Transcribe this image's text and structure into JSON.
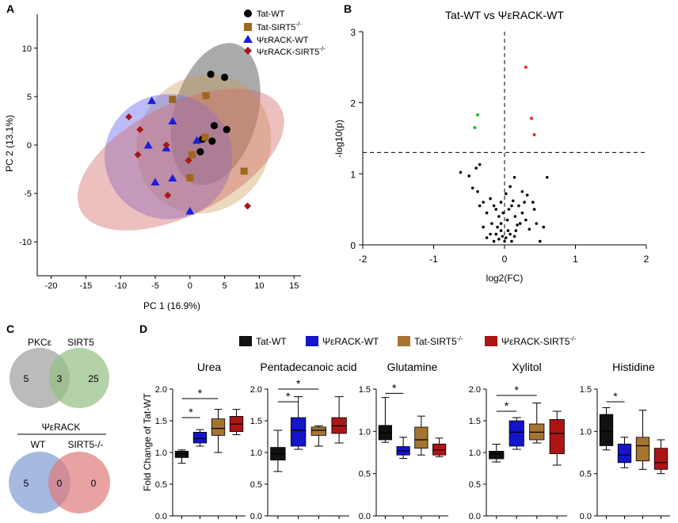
{
  "panels": {
    "a": "A",
    "b": "B",
    "c": "C",
    "d": "D"
  },
  "colors": {
    "tat_wt": "#000000",
    "tat_sirt5": "#a0661e",
    "psi_wt": "#1d1ddb",
    "psi_sirt5": "#a41919",
    "box_tat_wt": "#111111",
    "box_psi_wt": "#1414c8",
    "box_tat_sirt5": "#a47431",
    "box_psi_sirt5": "#ad1414",
    "venn_gray": "#9e9e9e",
    "venn_green": "#93bf82",
    "venn_blue": "#8fa8d9",
    "venn_red": "#e07a7a",
    "volcano_up": "#ee2a1e",
    "volcano_down": "#1fbf2a"
  },
  "pca": {
    "xlabel": "PC 1 (16.9%)",
    "ylabel": "PC 2 (13.1%)",
    "xticks": [
      "-20",
      "-15",
      "-10",
      "-5",
      "0",
      "5",
      "10",
      "15"
    ],
    "yticks": [
      "10",
      "5",
      "0",
      "-5",
      "-10"
    ],
    "legend": [
      "Tat-WT",
      "Tat-SIRT5",
      "ΨεRACK-WT",
      "ΨεRACK-SIRT5"
    ],
    "legend_sup": "-/-"
  },
  "volcano": {
    "title": "Tat-WT vs ΨεRACK-WT",
    "xlabel": "log2(FC)",
    "ylabel": "-log10(p)",
    "xticks": [
      "-2",
      "-1",
      "0",
      "1",
      "2"
    ],
    "yticks": [
      "3",
      "2",
      "1",
      "0"
    ]
  },
  "venn": {
    "top": {
      "left_label": "PKCε",
      "right_label": "SIRT5",
      "left_only": "5",
      "overlap": "3",
      "right_only": "25"
    },
    "bottom": {
      "title": "ΨεRACK",
      "left_label": "WT",
      "right_label": "SIRT5-/-",
      "left_only": "5",
      "overlap": "0",
      "right_only": "0"
    }
  },
  "boxplots": {
    "legend": [
      "Tat-WT",
      "ΨεRACK-WT",
      "Tat-SIRT5",
      "ΨεRACK-SIRT5"
    ],
    "legend_sup": "-/-",
    "ylabel": "Fold Change of Tat-WT",
    "sig": "*"
  },
  "chart_data": [
    {
      "type": "scatter",
      "title": "",
      "xlabel": "PC 1 (16.9%)",
      "ylabel": "PC 2 (13.1%)",
      "xlim": [
        -22,
        16
      ],
      "ylim": [
        -13.5,
        13.5
      ],
      "series": [
        {
          "name": "Tat-WT",
          "marker": "circle",
          "points": [
            [
              3,
              7.3
            ],
            [
              5,
              7
            ],
            [
              3.5,
              2
            ],
            [
              5.3,
              1.6
            ],
            [
              1.8,
              0.6
            ],
            [
              3.2,
              0.4
            ],
            [
              1.5,
              -0.7
            ]
          ]
        },
        {
          "name": "Tat-SIRT5-/-",
          "marker": "square",
          "points": [
            [
              -2.5,
              4.7
            ],
            [
              2.3,
              5.1
            ],
            [
              2.2,
              0.8
            ],
            [
              0.3,
              -1
            ],
            [
              0,
              -3.4
            ],
            [
              7.8,
              -2.7
            ]
          ]
        },
        {
          "name": "ΨεRACK-WT",
          "marker": "triangle",
          "points": [
            [
              -5.5,
              4.6
            ],
            [
              -2.5,
              2.5
            ],
            [
              -6,
              0
            ],
            [
              -3.4,
              -0.3
            ],
            [
              1,
              0.5
            ],
            [
              -2.5,
              -3.4
            ],
            [
              -5,
              -3.8
            ],
            [
              0,
              -6.8
            ]
          ]
        },
        {
          "name": "ΨεRACK-SIRT5-/-",
          "marker": "diamond",
          "points": [
            [
              -8.8,
              2.9
            ],
            [
              -7.2,
              1.6
            ],
            [
              -3.4,
              0
            ],
            [
              -7.5,
              -1
            ],
            [
              -0.2,
              -1.6
            ],
            [
              -3.2,
              -5.2
            ],
            [
              8.3,
              -6.3
            ]
          ]
        }
      ],
      "ellipses": [
        {
          "series": "Tat-WT",
          "center": [
            3.7,
            3.2
          ],
          "rx": 10.5,
          "ry": 4.3,
          "angle": -74
        },
        {
          "series": "Tat-SIRT5-/-",
          "center": [
            2,
            0.1
          ],
          "rx": 10.2,
          "ry": 6.8,
          "angle": -58
        },
        {
          "series": "ΨεRACK-WT",
          "center": [
            -3.1,
            -1.2
          ],
          "rx": 9,
          "ry": 6.6,
          "angle": -92
        },
        {
          "series": "ΨεRACK-SIRT5-/-",
          "center": [
            -1.3,
            -1.5
          ],
          "rx": 16.2,
          "ry": 5.7,
          "angle": -27
        }
      ]
    },
    {
      "type": "scatter",
      "title": "Tat-WT vs ΨεRACK-WT",
      "xlabel": "log2(FC)",
      "ylabel": "-log10(p)",
      "xlim": [
        -2,
        2
      ],
      "ylim": [
        0,
        3
      ],
      "threshold_y": 1.3,
      "significant_up": [
        [
          0.3,
          2.5
        ],
        [
          0.38,
          1.78
        ],
        [
          0.42,
          1.55
        ]
      ],
      "significant_down": [
        [
          -0.38,
          1.83
        ],
        [
          -0.42,
          1.65
        ]
      ],
      "nonsignificant": [
        [
          -0.62,
          1.02
        ],
        [
          -0.5,
          0.97
        ],
        [
          -0.4,
          1.08
        ],
        [
          -0.35,
          1.13
        ],
        [
          -0.38,
          0.75
        ],
        [
          -0.3,
          0.6
        ],
        [
          -0.2,
          0.65
        ],
        [
          -0.35,
          0.55
        ],
        [
          -0.25,
          0.45
        ],
        [
          -0.15,
          0.55
        ],
        [
          -0.12,
          0.5
        ],
        [
          -0.08,
          0.4
        ],
        [
          -0.05,
          0.3
        ],
        [
          -0.02,
          0.45
        ],
        [
          -0.18,
          0.3
        ],
        [
          -0.1,
          0.25
        ],
        [
          -0.05,
          0.2
        ],
        [
          -0.03,
          0.12
        ],
        [
          -0.08,
          0.08
        ],
        [
          -0.12,
          0.15
        ],
        [
          0,
          0.05
        ],
        [
          0.02,
          0.1
        ],
        [
          0.05,
          0.2
        ],
        [
          0.08,
          0.15
        ],
        [
          0.1,
          0.05
        ],
        [
          0.04,
          0.35
        ],
        [
          0.06,
          0.5
        ],
        [
          0.1,
          0.55
        ],
        [
          0.12,
          0.62
        ],
        [
          0.15,
          0.4
        ],
        [
          0.18,
          0.28
        ],
        [
          0.2,
          0.55
        ],
        [
          0.22,
          0.3
        ],
        [
          0.14,
          0.12
        ],
        [
          0.16,
          0.2
        ],
        [
          0.25,
          0.45
        ],
        [
          0.3,
          0.35
        ],
        [
          0.35,
          0.22
        ],
        [
          0.28,
          0.6
        ],
        [
          0.32,
          0.7
        ],
        [
          0.4,
          0.6
        ],
        [
          0.45,
          0.3
        ],
        [
          0.25,
          0.75
        ],
        [
          0.55,
          0.25
        ],
        [
          0.6,
          0.95
        ],
        [
          0.5,
          0.05
        ],
        [
          0.42,
          0.5
        ],
        [
          0.08,
          0.82
        ],
        [
          0.14,
          0.95
        ],
        [
          0.02,
          0.72
        ],
        [
          -0.2,
          0.15
        ],
        [
          -0.25,
          0.1
        ],
        [
          -0.15,
          0.05
        ],
        [
          -0.3,
          0.25
        ],
        [
          -0.45,
          0.8
        ],
        [
          -0.05,
          0.6
        ]
      ]
    },
    {
      "type": "box",
      "title": "Urea",
      "categories": [
        "Tat-WT",
        "ΨεRACK-WT",
        "Tat-SIRT5-/-",
        "ΨεRACK-SIRT5-/-"
      ],
      "ylim": [
        0,
        2
      ],
      "yticks": [
        "0.0",
        "0.5",
        "1.0",
        "1.5",
        "2.0"
      ],
      "boxes": [
        {
          "min": 0.83,
          "q1": 0.92,
          "median": 0.98,
          "q3": 1.02,
          "max": 1.04
        },
        {
          "min": 1.1,
          "q1": 1.15,
          "median": 1.22,
          "q3": 1.32,
          "max": 1.36
        },
        {
          "min": 1.0,
          "q1": 1.27,
          "median": 1.38,
          "q3": 1.53,
          "max": 1.68
        },
        {
          "min": 1.28,
          "q1": 1.33,
          "median": 1.45,
          "q3": 1.57,
          "max": 1.68
        }
      ],
      "significance": [
        {
          "from": 0,
          "to": 1,
          "y": 1.55
        },
        {
          "from": 0,
          "to": 2,
          "y": 1.85
        }
      ]
    },
    {
      "type": "box",
      "title": "Pentadecanoic acid",
      "categories": [
        "Tat-WT",
        "ΨεRACK-WT",
        "Tat-SIRT5-/-",
        "ΨεRACK-SIRT5-/-"
      ],
      "ylim": [
        0,
        2
      ],
      "yticks": [
        "0.0",
        "0.5",
        "1.0",
        "1.5",
        "2.0"
      ],
      "boxes": [
        {
          "min": 0.7,
          "q1": 0.88,
          "median": 0.98,
          "q3": 1.08,
          "max": 1.35
        },
        {
          "min": 1.05,
          "q1": 1.1,
          "median": 1.35,
          "q3": 1.55,
          "max": 1.88
        },
        {
          "min": 1.1,
          "q1": 1.27,
          "median": 1.35,
          "q3": 1.4,
          "max": 1.42
        },
        {
          "min": 1.15,
          "q1": 1.3,
          "median": 1.42,
          "q3": 1.55,
          "max": 1.88
        }
      ],
      "significance": [
        {
          "from": 0,
          "to": 1,
          "y": 1.8
        },
        {
          "from": 0,
          "to": 2,
          "y": 2.0
        }
      ]
    },
    {
      "type": "box",
      "title": "Glutamine",
      "categories": [
        "Tat-WT",
        "ΨεRACK-WT",
        "Tat-SIRT5-/-",
        "ΨεRACK-SIRT5-/-"
      ],
      "ylim": [
        0,
        1.5
      ],
      "yticks": [
        "0.0",
        "0.5",
        "1.0",
        "1.5"
      ],
      "boxes": [
        {
          "min": 0.87,
          "q1": 0.9,
          "median": 0.98,
          "q3": 1.07,
          "max": 1.4
        },
        {
          "min": 0.68,
          "q1": 0.72,
          "median": 0.77,
          "q3": 0.82,
          "max": 0.93
        },
        {
          "min": 0.72,
          "q1": 0.8,
          "median": 0.9,
          "q3": 1.05,
          "max": 1.18
        },
        {
          "min": 0.7,
          "q1": 0.72,
          "median": 0.78,
          "q3": 0.85,
          "max": 0.92
        }
      ],
      "significance": [
        {
          "from": 0,
          "to": 1,
          "y": 1.45
        }
      ]
    },
    {
      "type": "box",
      "title": "Xylitol",
      "categories": [
        "Tat-WT",
        "ΨεRACK-WT",
        "Tat-SIRT5-/-",
        "ΨεRACK-SIRT5-/-"
      ],
      "ylim": [
        0,
        2
      ],
      "yticks": [
        "0.0",
        "0.5",
        "1.0",
        "1.5",
        "2.0"
      ],
      "boxes": [
        {
          "min": 0.85,
          "q1": 0.9,
          "median": 0.98,
          "q3": 1.02,
          "max": 1.13
        },
        {
          "min": 1.05,
          "q1": 1.1,
          "median": 1.32,
          "q3": 1.5,
          "max": 1.55
        },
        {
          "min": 1.15,
          "q1": 1.2,
          "median": 1.32,
          "q3": 1.45,
          "max": 1.78
        },
        {
          "min": 0.8,
          "q1": 0.98,
          "median": 1.3,
          "q3": 1.52,
          "max": 1.65
        }
      ],
      "significance": [
        {
          "from": 0,
          "to": 1,
          "y": 1.65
        },
        {
          "from": 0,
          "to": 2,
          "y": 1.9
        }
      ]
    },
    {
      "type": "box",
      "title": "Histidine",
      "categories": [
        "Tat-WT",
        "ΨεRACK-WT",
        "Tat-SIRT5-/-",
        "ΨεRACK-SIRT5-/-"
      ],
      "ylim": [
        0,
        1.5
      ],
      "yticks": [
        "0.0",
        "0.5",
        "1.0",
        "1.5"
      ],
      "boxes": [
        {
          "min": 0.78,
          "q1": 0.83,
          "median": 1.0,
          "q3": 1.2,
          "max": 1.28
        },
        {
          "min": 0.57,
          "q1": 0.63,
          "median": 0.72,
          "q3": 0.85,
          "max": 0.93
        },
        {
          "min": 0.55,
          "q1": 0.65,
          "median": 0.83,
          "q3": 0.93,
          "max": 1.25
        },
        {
          "min": 0.5,
          "q1": 0.55,
          "median": 0.63,
          "q3": 0.8,
          "max": 0.9
        }
      ],
      "significance": [
        {
          "from": 0,
          "to": 1,
          "y": 1.35
        }
      ]
    }
  ]
}
